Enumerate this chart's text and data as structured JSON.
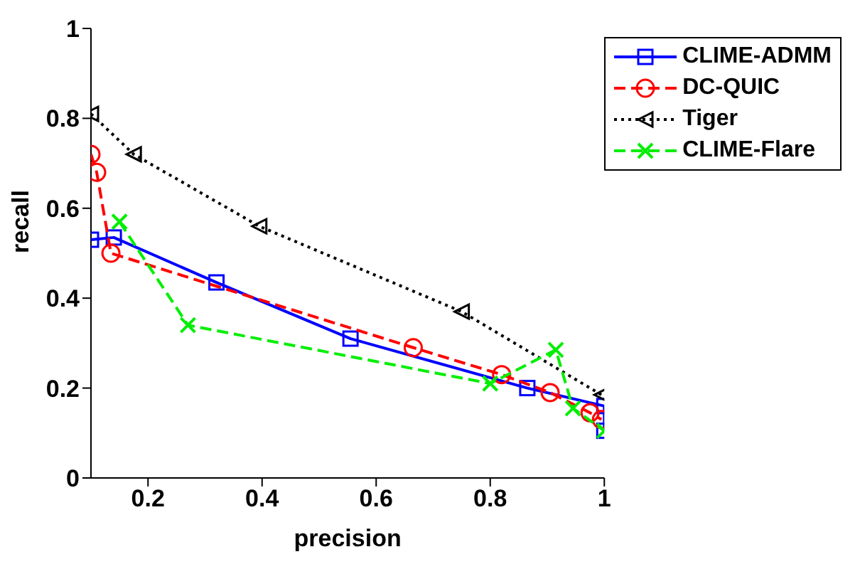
{
  "chart_data": {
    "type": "line",
    "xlabel": "precision",
    "ylabel": "recall",
    "xlim": [
      0.1,
      1
    ],
    "ylim": [
      0,
      1
    ],
    "xticks": [
      0.2,
      0.4,
      0.6,
      0.8,
      1
    ],
    "yticks": [
      0,
      0.2,
      0.4,
      0.6,
      0.8,
      1
    ],
    "grid": false,
    "legend": "top right",
    "series": [
      {
        "name": "CLIME-ADMM",
        "color": "#0000ff",
        "marker": "square",
        "line_style": "solid",
        "x": [
          0.1,
          0.14,
          0.32,
          0.555,
          0.865,
          1.0,
          1.0
        ],
        "values": [
          0.53,
          0.535,
          0.435,
          0.31,
          0.2,
          0.16,
          0.105
        ]
      },
      {
        "name": "DC-QUIC",
        "color": "#ff0000",
        "marker": "circle",
        "line_style": "dashed",
        "x": [
          0.1,
          0.11,
          0.135,
          0.665,
          0.82,
          0.905,
          0.975,
          0.995
        ],
        "values": [
          0.72,
          0.68,
          0.5,
          0.29,
          0.23,
          0.19,
          0.145,
          0.13
        ]
      },
      {
        "name": "Tiger",
        "color": "#000000",
        "marker": "triangle",
        "line_style": "dotted",
        "x": [
          0.1,
          0.175,
          0.395,
          0.75,
          0.995
        ],
        "values": [
          0.81,
          0.72,
          0.56,
          0.37,
          0.185
        ]
      },
      {
        "name": "CLIME-Flare",
        "color": "#00ee00",
        "marker": "cross",
        "line_style": "dashed",
        "x": [
          0.15,
          0.27,
          0.8,
          0.915,
          0.945,
          1.0
        ],
        "values": [
          0.57,
          0.34,
          0.21,
          0.285,
          0.155,
          0.105
        ]
      }
    ]
  }
}
